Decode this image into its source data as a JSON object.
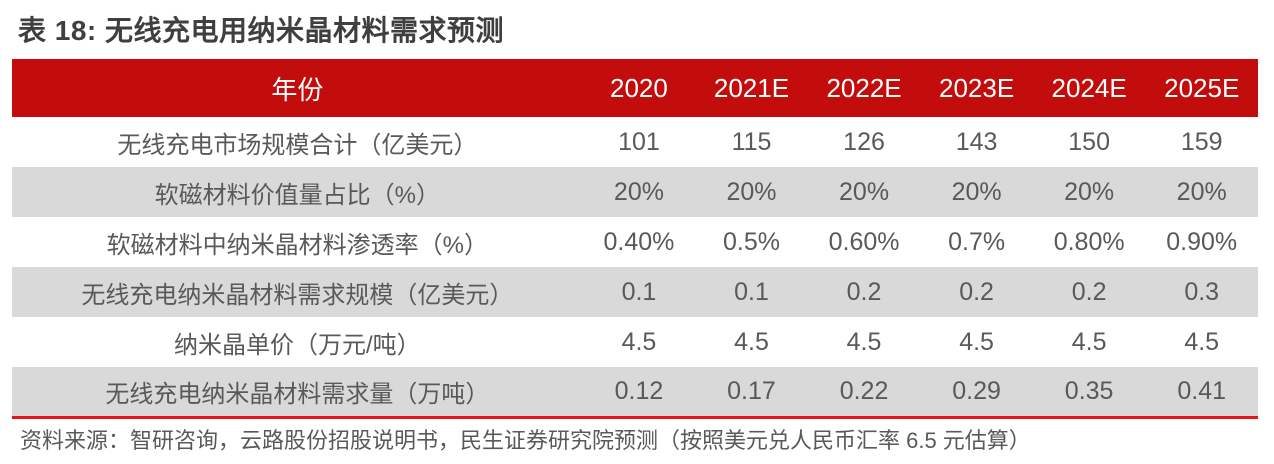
{
  "title": "表 18: 无线充电用纳米晶材料需求预测",
  "table": {
    "header": {
      "label": "年份",
      "years": [
        "2020",
        "2021E",
        "2022E",
        "2023E",
        "2024E",
        "2025E"
      ]
    },
    "rows": [
      {
        "label": "无线充电市场规模合计（亿美元）",
        "values": [
          "101",
          "115",
          "126",
          "143",
          "150",
          "159"
        ]
      },
      {
        "label": "软磁材料价值量占比（%）",
        "values": [
          "20%",
          "20%",
          "20%",
          "20%",
          "20%",
          "20%"
        ]
      },
      {
        "label": "软磁材料中纳米晶材料渗透率（%）",
        "values": [
          "0.40%",
          "0.5%",
          "0.60%",
          "0.7%",
          "0.80%",
          "0.90%"
        ]
      },
      {
        "label": "无线充电纳米晶材料需求规模（亿美元）",
        "values": [
          "0.1",
          "0.1",
          "0.2",
          "0.2",
          "0.2",
          "0.3"
        ]
      },
      {
        "label": "纳米晶单价（万元/吨）",
        "values": [
          "4.5",
          "4.5",
          "4.5",
          "4.5",
          "4.5",
          "4.5"
        ]
      },
      {
        "label": "无线充电纳米晶材料需求量（万吨）",
        "values": [
          "0.12",
          "0.17",
          "0.22",
          "0.29",
          "0.35",
          "0.41"
        ]
      }
    ]
  },
  "source": "资料来源：智研咨询，云路股份招股说明书，民生证券研究院预测（按照美元兑人民币汇率 6.5 元估算）",
  "colors": {
    "header_bg": "#c30d0d",
    "row_alt_bg": "#d9d9d9",
    "accent_line": "#e61414",
    "title_text": "#3f3f3f",
    "body_text": "#595959"
  }
}
